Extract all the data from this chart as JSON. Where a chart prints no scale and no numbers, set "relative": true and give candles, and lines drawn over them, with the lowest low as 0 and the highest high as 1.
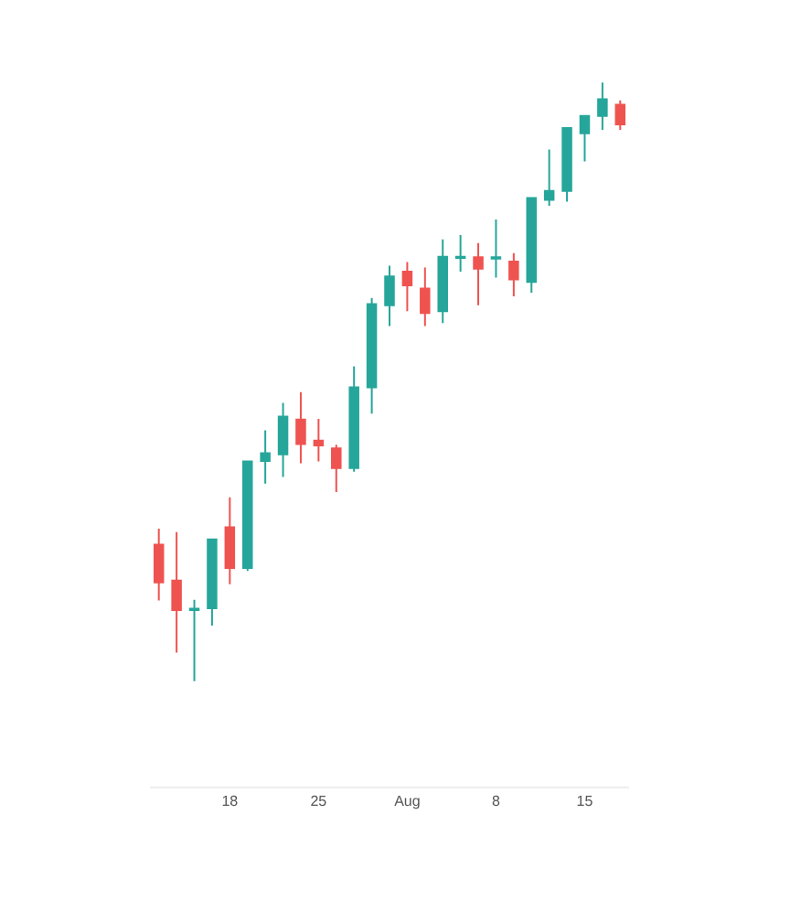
{
  "chart_data": {
    "type": "candlestick",
    "relative": true,
    "categories": [
      null,
      null,
      null,
      null,
      "18",
      null,
      null,
      null,
      null,
      "25",
      null,
      null,
      null,
      null,
      "Aug",
      null,
      null,
      null,
      null,
      "8",
      null,
      null,
      null,
      null,
      "15",
      null,
      null
    ],
    "ohlc": [
      [
        0.228,
        0.255,
        0.135,
        0.165
      ],
      [
        0.168,
        0.249,
        0.048,
        0.119
      ],
      [
        0.119,
        0.136,
        0.0,
        0.121
      ],
      [
        0.122,
        0.237,
        0.093,
        0.237
      ],
      [
        0.257,
        0.307,
        0.162,
        0.189
      ],
      [
        0.189,
        0.367,
        0.184,
        0.367
      ],
      [
        0.368,
        0.419,
        0.33,
        0.381
      ],
      [
        0.379,
        0.465,
        0.341,
        0.442
      ],
      [
        0.437,
        0.483,
        0.364,
        0.396
      ],
      [
        0.402,
        0.438,
        0.367,
        0.394
      ],
      [
        0.389,
        0.395,
        0.316,
        0.356
      ],
      [
        0.356,
        0.526,
        0.35,
        0.491
      ],
      [
        0.491,
        0.64,
        0.447,
        0.63
      ],
      [
        0.628,
        0.694,
        0.593,
        0.676
      ],
      [
        0.684,
        0.7,
        0.618,
        0.661
      ],
      [
        0.656,
        0.691,
        0.593,
        0.615
      ],
      [
        0.618,
        0.738,
        0.598,
        0.709
      ],
      [
        0.707,
        0.745,
        0.684,
        0.709
      ],
      [
        0.708,
        0.732,
        0.628,
        0.689
      ],
      [
        0.706,
        0.771,
        0.674,
        0.708
      ],
      [
        0.701,
        0.715,
        0.643,
        0.671
      ],
      [
        0.667,
        0.807,
        0.649,
        0.807
      ],
      [
        0.804,
        0.888,
        0.794,
        0.819
      ],
      [
        0.819,
        0.924,
        0.801,
        0.924
      ],
      [
        0.915,
        0.944,
        0.868,
        0.944
      ],
      [
        0.944,
        1.0,
        0.921,
        0.972
      ],
      [
        0.963,
        0.97,
        0.921,
        0.93
      ]
    ],
    "colors": [
      "#ef5350",
      "#ef5350",
      "#26a69a",
      "#26a69a",
      "#ef5350",
      "#26a69a",
      "#26a69a",
      "#26a69a",
      "#ef5350",
      "#ef5350",
      "#ef5350",
      "#26a69a",
      "#26a69a",
      "#26a69a",
      "#ef5350",
      "#ef5350",
      "#26a69a",
      "#26a69a",
      "#ef5350",
      "#26a69a",
      "#ef5350",
      "#26a69a",
      "#26a69a",
      "#26a69a",
      "#26a69a",
      "#26a69a",
      "#ef5350"
    ]
  }
}
